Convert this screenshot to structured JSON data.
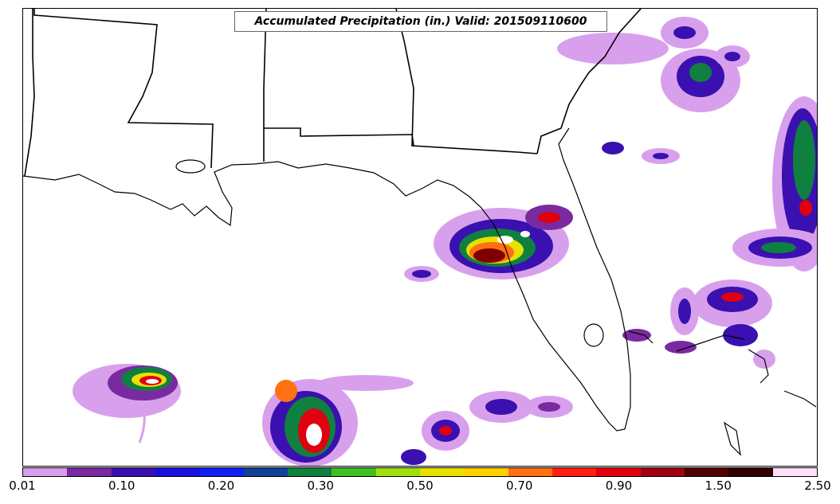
{
  "title": "Accumulated Precipitation (in.) Valid: 201509110600",
  "colorbar": {
    "colors": [
      "#d8a0ec",
      "#7a2aa0",
      "#3a10b0",
      "#1a10e0",
      "#1020f0",
      "#10409a",
      "#108040",
      "#40c020",
      "#a0e010",
      "#e8e000",
      "#ffd000",
      "#ff7010",
      "#ff2010",
      "#e00010",
      "#a00010",
      "#500000",
      "#300000",
      "#ffe0fa"
    ],
    "labels": [
      "0.01",
      "0.10",
      "0.20",
      "0.30",
      "0.50",
      "0.70",
      "0.90",
      "1.50",
      "2.50"
    ]
  },
  "palette": {
    "light_purple": "#d8a0ec",
    "purple": "#7a2aa0",
    "indigo": "#3a10b0",
    "blue": "#1a10e0",
    "green": "#108040",
    "lime": "#40c020",
    "yellow": "#e8e000",
    "orange": "#ff7010",
    "red": "#e00010",
    "dark_red": "#800000",
    "white": "#ffffff"
  },
  "map": {
    "features": [
      "state-boundaries",
      "coastline",
      "precipitation-field"
    ]
  }
}
